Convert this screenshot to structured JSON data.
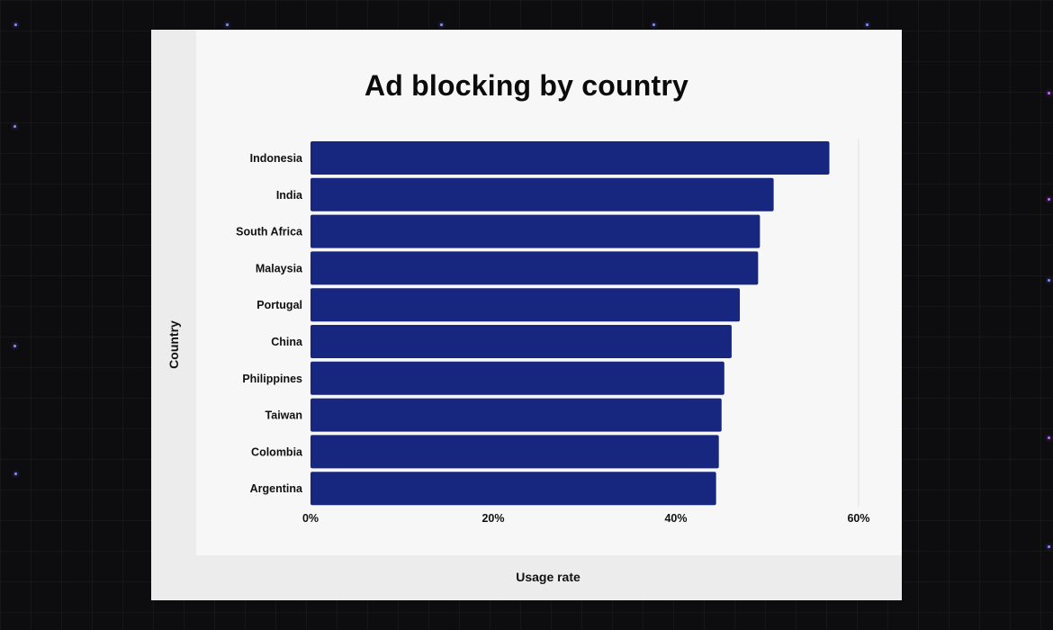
{
  "chart_data": {
    "type": "bar",
    "orientation": "horizontal",
    "title": "Ad blocking by country",
    "xlabel": "Usage rate",
    "ylabel": "Country",
    "categories": [
      "Indonesia",
      "India",
      "South Africa",
      "Malaysia",
      "Portugal",
      "China",
      "Philippines",
      "Taiwan",
      "Colombia",
      "Argentina"
    ],
    "values": [
      56.8,
      50.7,
      49.2,
      49.0,
      47.0,
      46.1,
      45.3,
      45.0,
      44.7,
      44.4
    ],
    "xlim": [
      0,
      60
    ],
    "xticks": [
      "0%",
      "20%",
      "40%",
      "60%"
    ],
    "grid": false,
    "colors": {
      "bar": "#17277f",
      "background": "#f7f7f8",
      "axis_band": "#ececec"
    }
  }
}
